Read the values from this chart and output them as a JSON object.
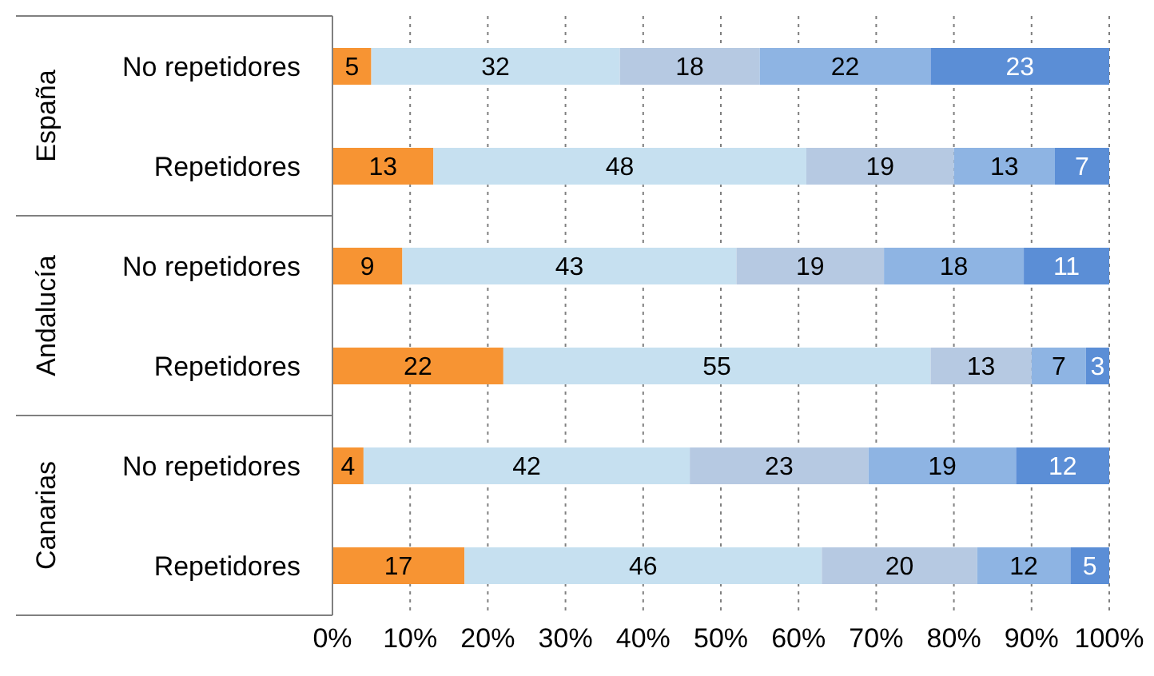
{
  "chart_data": {
    "type": "bar",
    "orientation": "horizontal",
    "stacked": true,
    "data_labels": true,
    "grid": "x",
    "legend": false,
    "categories": [
      "No repetidores",
      "Repetidores",
      "No repetidores",
      "Repetidores",
      "No repetidores",
      "Repetidores"
    ],
    "annotations": [
      "España",
      "Andalucía",
      "Canarias"
    ],
    "series": [
      {
        "color": "#f79433",
        "values": [
          5,
          13,
          9,
          22,
          4,
          17
        ]
      },
      {
        "color": "#c6e0f0",
        "values": [
          32,
          48,
          43,
          55,
          42,
          46
        ]
      },
      {
        "color": "#b6c9e2",
        "values": [
          18,
          19,
          19,
          13,
          23,
          20
        ]
      },
      {
        "color": "#8eb4e3",
        "values": [
          22,
          13,
          18,
          7,
          19,
          12
        ]
      },
      {
        "color": "#5b8ed6",
        "values": [
          23,
          7,
          11,
          3,
          12,
          5
        ]
      }
    ],
    "xlim": [
      0,
      100
    ],
    "xticks": [
      {
        "value": 0,
        "label": "0%"
      },
      {
        "value": 10,
        "label": "10%"
      },
      {
        "value": 20,
        "label": "20%"
      },
      {
        "value": 30,
        "label": "30%"
      },
      {
        "value": 40,
        "label": "40%"
      },
      {
        "value": 50,
        "label": "50%"
      },
      {
        "value": 60,
        "label": "60%"
      },
      {
        "value": 70,
        "label": "70%"
      },
      {
        "value": 80,
        "label": "80%"
      },
      {
        "value": 90,
        "label": "90%"
      },
      {
        "value": 100,
        "label": "100%"
      }
    ]
  }
}
